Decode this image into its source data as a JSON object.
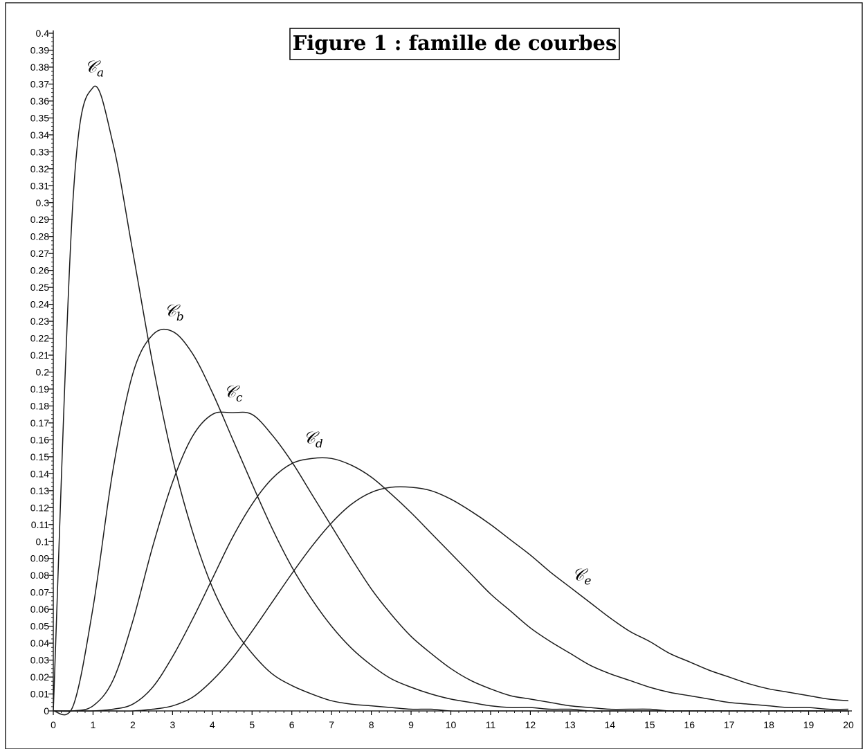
{
  "chart_data": {
    "type": "line",
    "title": "Figure 1 : famille de courbes",
    "xlabel": "",
    "ylabel": "",
    "xlim": [
      0,
      20
    ],
    "ylim": [
      0,
      0.4
    ],
    "x_ticks": [
      0,
      1,
      2,
      3,
      4,
      5,
      6,
      7,
      8,
      9,
      10,
      11,
      12,
      13,
      14,
      15,
      16,
      17,
      18,
      19,
      20
    ],
    "y_ticks": [
      0,
      0.01,
      0.02,
      0.03,
      0.04,
      0.05,
      0.06,
      0.07,
      0.08,
      0.09,
      0.1,
      0.11,
      0.12,
      0.13,
      0.14,
      0.15,
      0.16,
      0.17,
      0.18,
      0.19,
      0.2,
      0.21,
      0.22,
      0.23,
      0.24,
      0.25,
      0.26,
      0.27,
      0.28,
      0.29,
      0.3,
      0.31,
      0.32,
      0.33,
      0.34,
      0.35,
      0.36,
      0.37,
      0.38,
      0.39,
      0.4
    ],
    "grid": false,
    "line_color": "#1a1a1a",
    "x": [
      0,
      0.5,
      1,
      1.5,
      2,
      2.5,
      3,
      3.5,
      4,
      4.5,
      5,
      5.5,
      6,
      6.5,
      7,
      7.5,
      8,
      8.5,
      9,
      9.5,
      10,
      10.5,
      11,
      11.5,
      12,
      12.5,
      13,
      13.5,
      14,
      14.5,
      15,
      15.5,
      16,
      16.5,
      17,
      17.5,
      18,
      18.5,
      19,
      19.5,
      20
    ],
    "series": [
      {
        "name": "𝒞",
        "subscript": "a",
        "values": [
          0,
          0.303,
          0.368,
          0.335,
          0.271,
          0.205,
          0.149,
          0.106,
          0.073,
          0.05,
          0.034,
          0.022,
          0.015,
          0.01,
          0.006,
          0.004,
          0.003,
          0.002,
          0.001,
          0.001,
          0,
          0,
          0,
          0,
          0,
          0,
          0,
          0,
          0,
          0,
          0,
          0,
          0,
          0,
          0,
          0,
          0,
          0,
          0,
          0,
          0
        ]
      },
      {
        "name": "𝒞",
        "subscript": "b",
        "values": [
          0,
          0.003,
          0.061,
          0.142,
          0.199,
          0.222,
          0.224,
          0.211,
          0.188,
          0.161,
          0.134,
          0.108,
          0.085,
          0.066,
          0.05,
          0.037,
          0.027,
          0.019,
          0.014,
          0.01,
          0.007,
          0.005,
          0.003,
          0.002,
          0.002,
          0.001,
          0.001,
          0,
          0,
          0,
          0,
          0,
          0,
          0,
          0,
          0,
          0,
          0,
          0,
          0,
          0
        ]
      },
      {
        "name": "𝒞",
        "subscript": "c",
        "values": [
          0,
          0,
          0.003,
          0.018,
          0.053,
          0.097,
          0.135,
          0.162,
          0.175,
          0.176,
          0.175,
          0.163,
          0.147,
          0.128,
          0.109,
          0.09,
          0.072,
          0.057,
          0.044,
          0.034,
          0.025,
          0.018,
          0.013,
          0.009,
          0.007,
          0.005,
          0.003,
          0.002,
          0.001,
          0.001,
          0.001,
          0,
          0,
          0,
          0,
          0,
          0,
          0,
          0,
          0,
          0
        ]
      },
      {
        "name": "𝒞",
        "subscript": "d",
        "values": [
          0,
          0,
          0,
          0.001,
          0.004,
          0.014,
          0.032,
          0.054,
          0.078,
          0.102,
          0.122,
          0.137,
          0.146,
          0.149,
          0.149,
          0.145,
          0.138,
          0.128,
          0.117,
          0.105,
          0.093,
          0.081,
          0.069,
          0.059,
          0.049,
          0.041,
          0.034,
          0.027,
          0.022,
          0.018,
          0.014,
          0.011,
          0.009,
          0.007,
          0.005,
          0.004,
          0.003,
          0.002,
          0.002,
          0.001,
          0.001
        ]
      },
      {
        "name": "𝒞",
        "subscript": "e",
        "values": [
          0,
          0,
          0,
          0,
          0,
          0.001,
          0.003,
          0.008,
          0.018,
          0.031,
          0.047,
          0.064,
          0.081,
          0.097,
          0.111,
          0.122,
          0.129,
          0.132,
          0.132,
          0.13,
          0.125,
          0.118,
          0.11,
          0.101,
          0.092,
          0.082,
          0.073,
          0.064,
          0.055,
          0.047,
          0.041,
          0.034,
          0.029,
          0.024,
          0.02,
          0.016,
          0.013,
          0.011,
          0.009,
          0.007,
          0.006
        ]
      }
    ]
  }
}
